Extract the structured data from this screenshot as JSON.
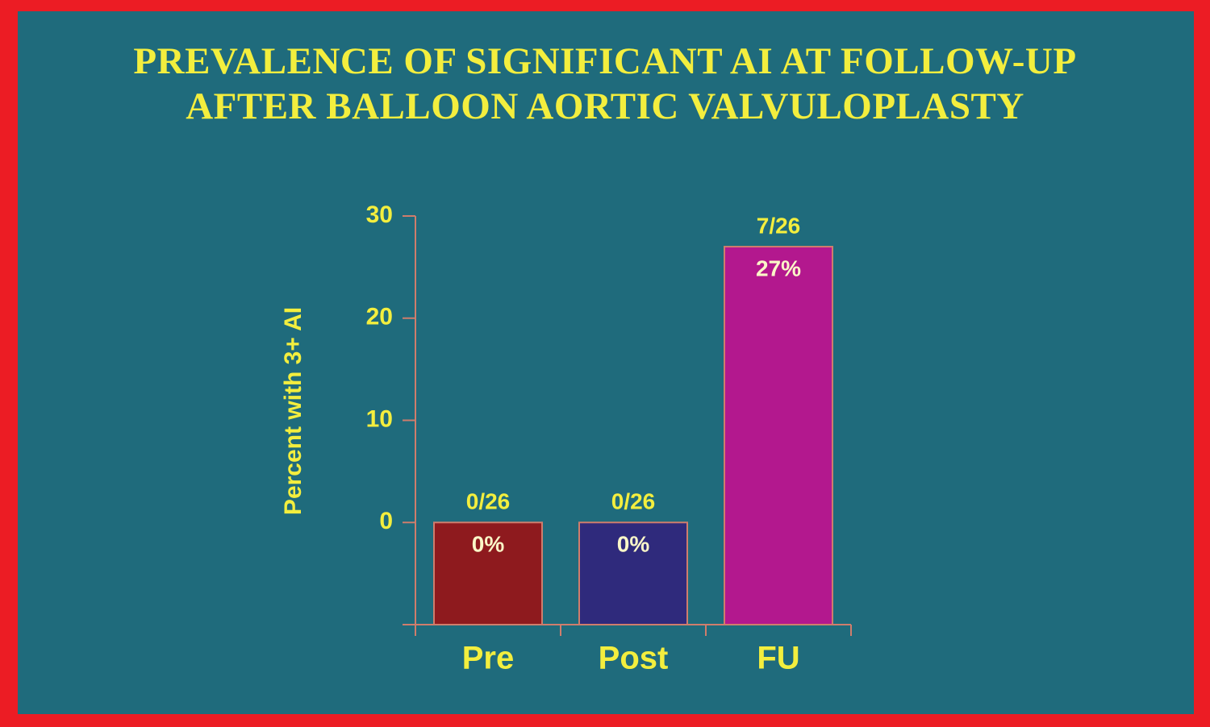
{
  "chart_data": {
    "type": "bar",
    "title": [
      "PREVALENCE OF SIGNIFICANT AI AT FOLLOW-UP",
      "AFTER BALLOON AORTIC VALVULOPLASTY"
    ],
    "y_label": "Percent with 3+ AI",
    "categories": [
      "Pre",
      "Post",
      "FU"
    ],
    "values": [
      0,
      0,
      27
    ],
    "value_labels": [
      "0%",
      "0%",
      "27%"
    ],
    "count_labels": [
      "0/26",
      "0/26",
      "7/26"
    ],
    "colors": [
      "#8e1a1e",
      "#2f2a7c",
      "#b3188e"
    ],
    "ylim": [
      -10,
      30
    ],
    "yticks": [
      0,
      10,
      20,
      30
    ]
  }
}
